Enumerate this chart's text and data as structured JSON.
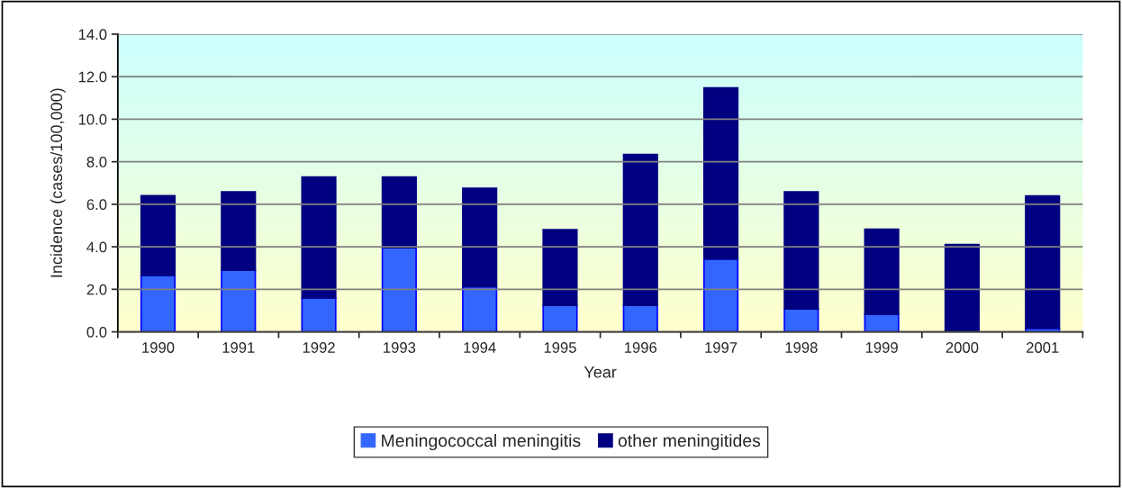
{
  "chart_data": {
    "type": "bar",
    "stacked": true,
    "xlabel": "Year",
    "ylabel": "Incidence (cases/100,000)",
    "categories": [
      "1990",
      "1991",
      "1992",
      "1993",
      "1994",
      "1995",
      "1996",
      "1997",
      "1998",
      "1999",
      "2000",
      "2001"
    ],
    "series": [
      {
        "name": "Meningococcal meningitis",
        "color": "#3366ff",
        "values": [
          2.65,
          2.9,
          1.59,
          3.96,
          2.12,
          1.24,
          1.24,
          3.43,
          1.07,
          0.82,
          0,
          0.17
        ]
      },
      {
        "name": "other meningitides",
        "color": "#000080",
        "values": [
          3.75,
          3.68,
          5.69,
          3.32,
          4.63,
          3.57,
          7.1,
          8.04,
          5.51,
          4.01,
          4.11,
          6.22
        ]
      }
    ],
    "ylim": [
      0,
      14
    ],
    "yticks": [
      {
        "value": 0,
        "label": "0.0"
      },
      {
        "value": 2,
        "label": "2.0"
      },
      {
        "value": 4,
        "label": "4.0"
      },
      {
        "value": 6,
        "label": "6.0"
      },
      {
        "value": 8,
        "label": "8.0"
      },
      {
        "value": 10,
        "label": "10.0"
      },
      {
        "value": 12,
        "label": "12.0"
      },
      {
        "value": 14,
        "label": "14.0"
      }
    ],
    "grid": "y",
    "legend": "bottom"
  }
}
